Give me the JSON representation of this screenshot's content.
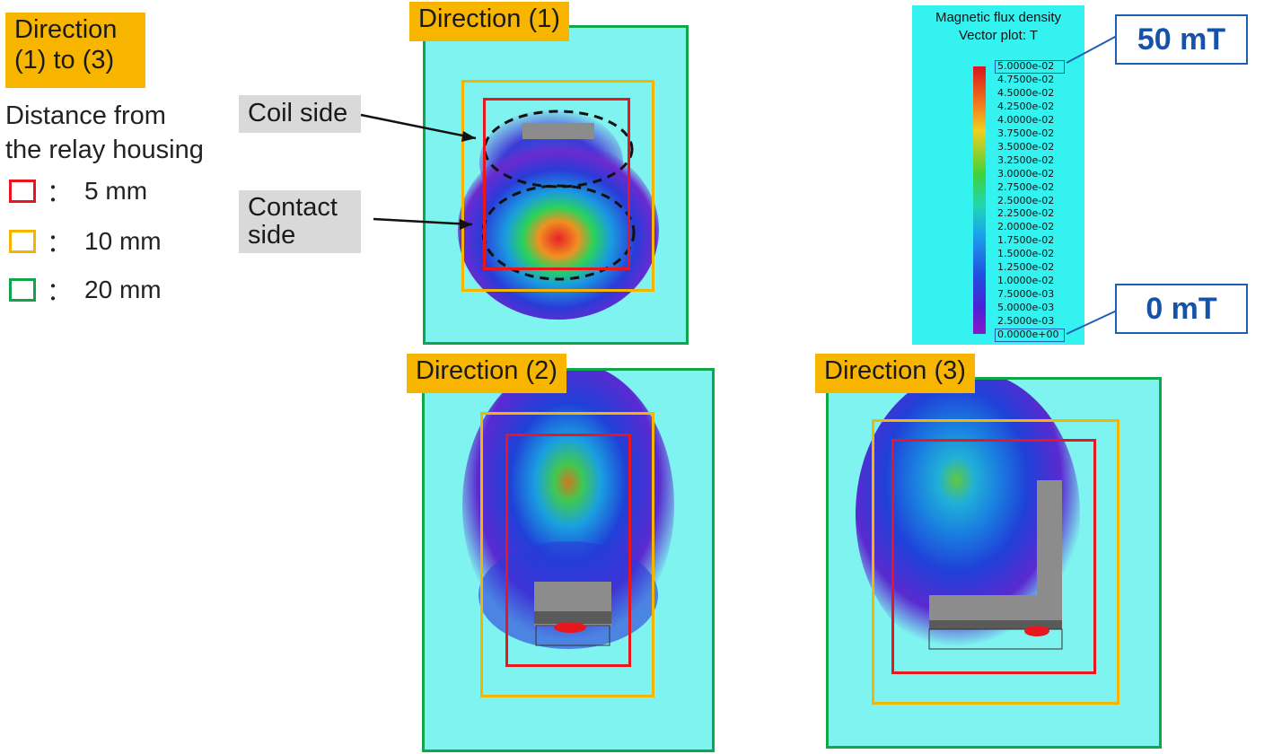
{
  "header_tag": {
    "line1": "Direction",
    "line2": "(1) to (3)"
  },
  "legend": {
    "title_line1": "Distance from",
    "title_line2": "the relay housing",
    "items": [
      {
        "label": "5 mm",
        "color": "#e8171e"
      },
      {
        "label": "10 mm",
        "color": "#f4b400"
      },
      {
        "label": "20 mm",
        "color": "#13a34b"
      }
    ],
    "separator": "："
  },
  "annotations": {
    "coil": "Coil side",
    "contact_line1": "Contact",
    "contact_line2": "side"
  },
  "directions": {
    "d1": "Direction (1)",
    "d2": "Direction (2)",
    "d3": "Direction (3)"
  },
  "colorbar": {
    "title_line1": "Magnetic flux density",
    "title_line2": "Vector plot: T",
    "ticks": [
      "5.0000e-02",
      "4.7500e-02",
      "4.5000e-02",
      "4.2500e-02",
      "4.0000e-02",
      "3.7500e-02",
      "3.5000e-02",
      "3.2500e-02",
      "3.0000e-02",
      "2.7500e-02",
      "2.5000e-02",
      "2.2500e-02",
      "2.0000e-02",
      "1.7500e-02",
      "1.5000e-02",
      "1.2500e-02",
      "1.0000e-02",
      "7.5000e-03",
      "5.0000e-03",
      "2.5000e-03",
      "0.0000e+00"
    ],
    "max_callout": "50 mT",
    "min_callout": "0 mT"
  },
  "colors": {
    "background_field": "#7ff3ef",
    "callout_blue": "#1f5fb3",
    "tag_orange": "#f8b500"
  }
}
